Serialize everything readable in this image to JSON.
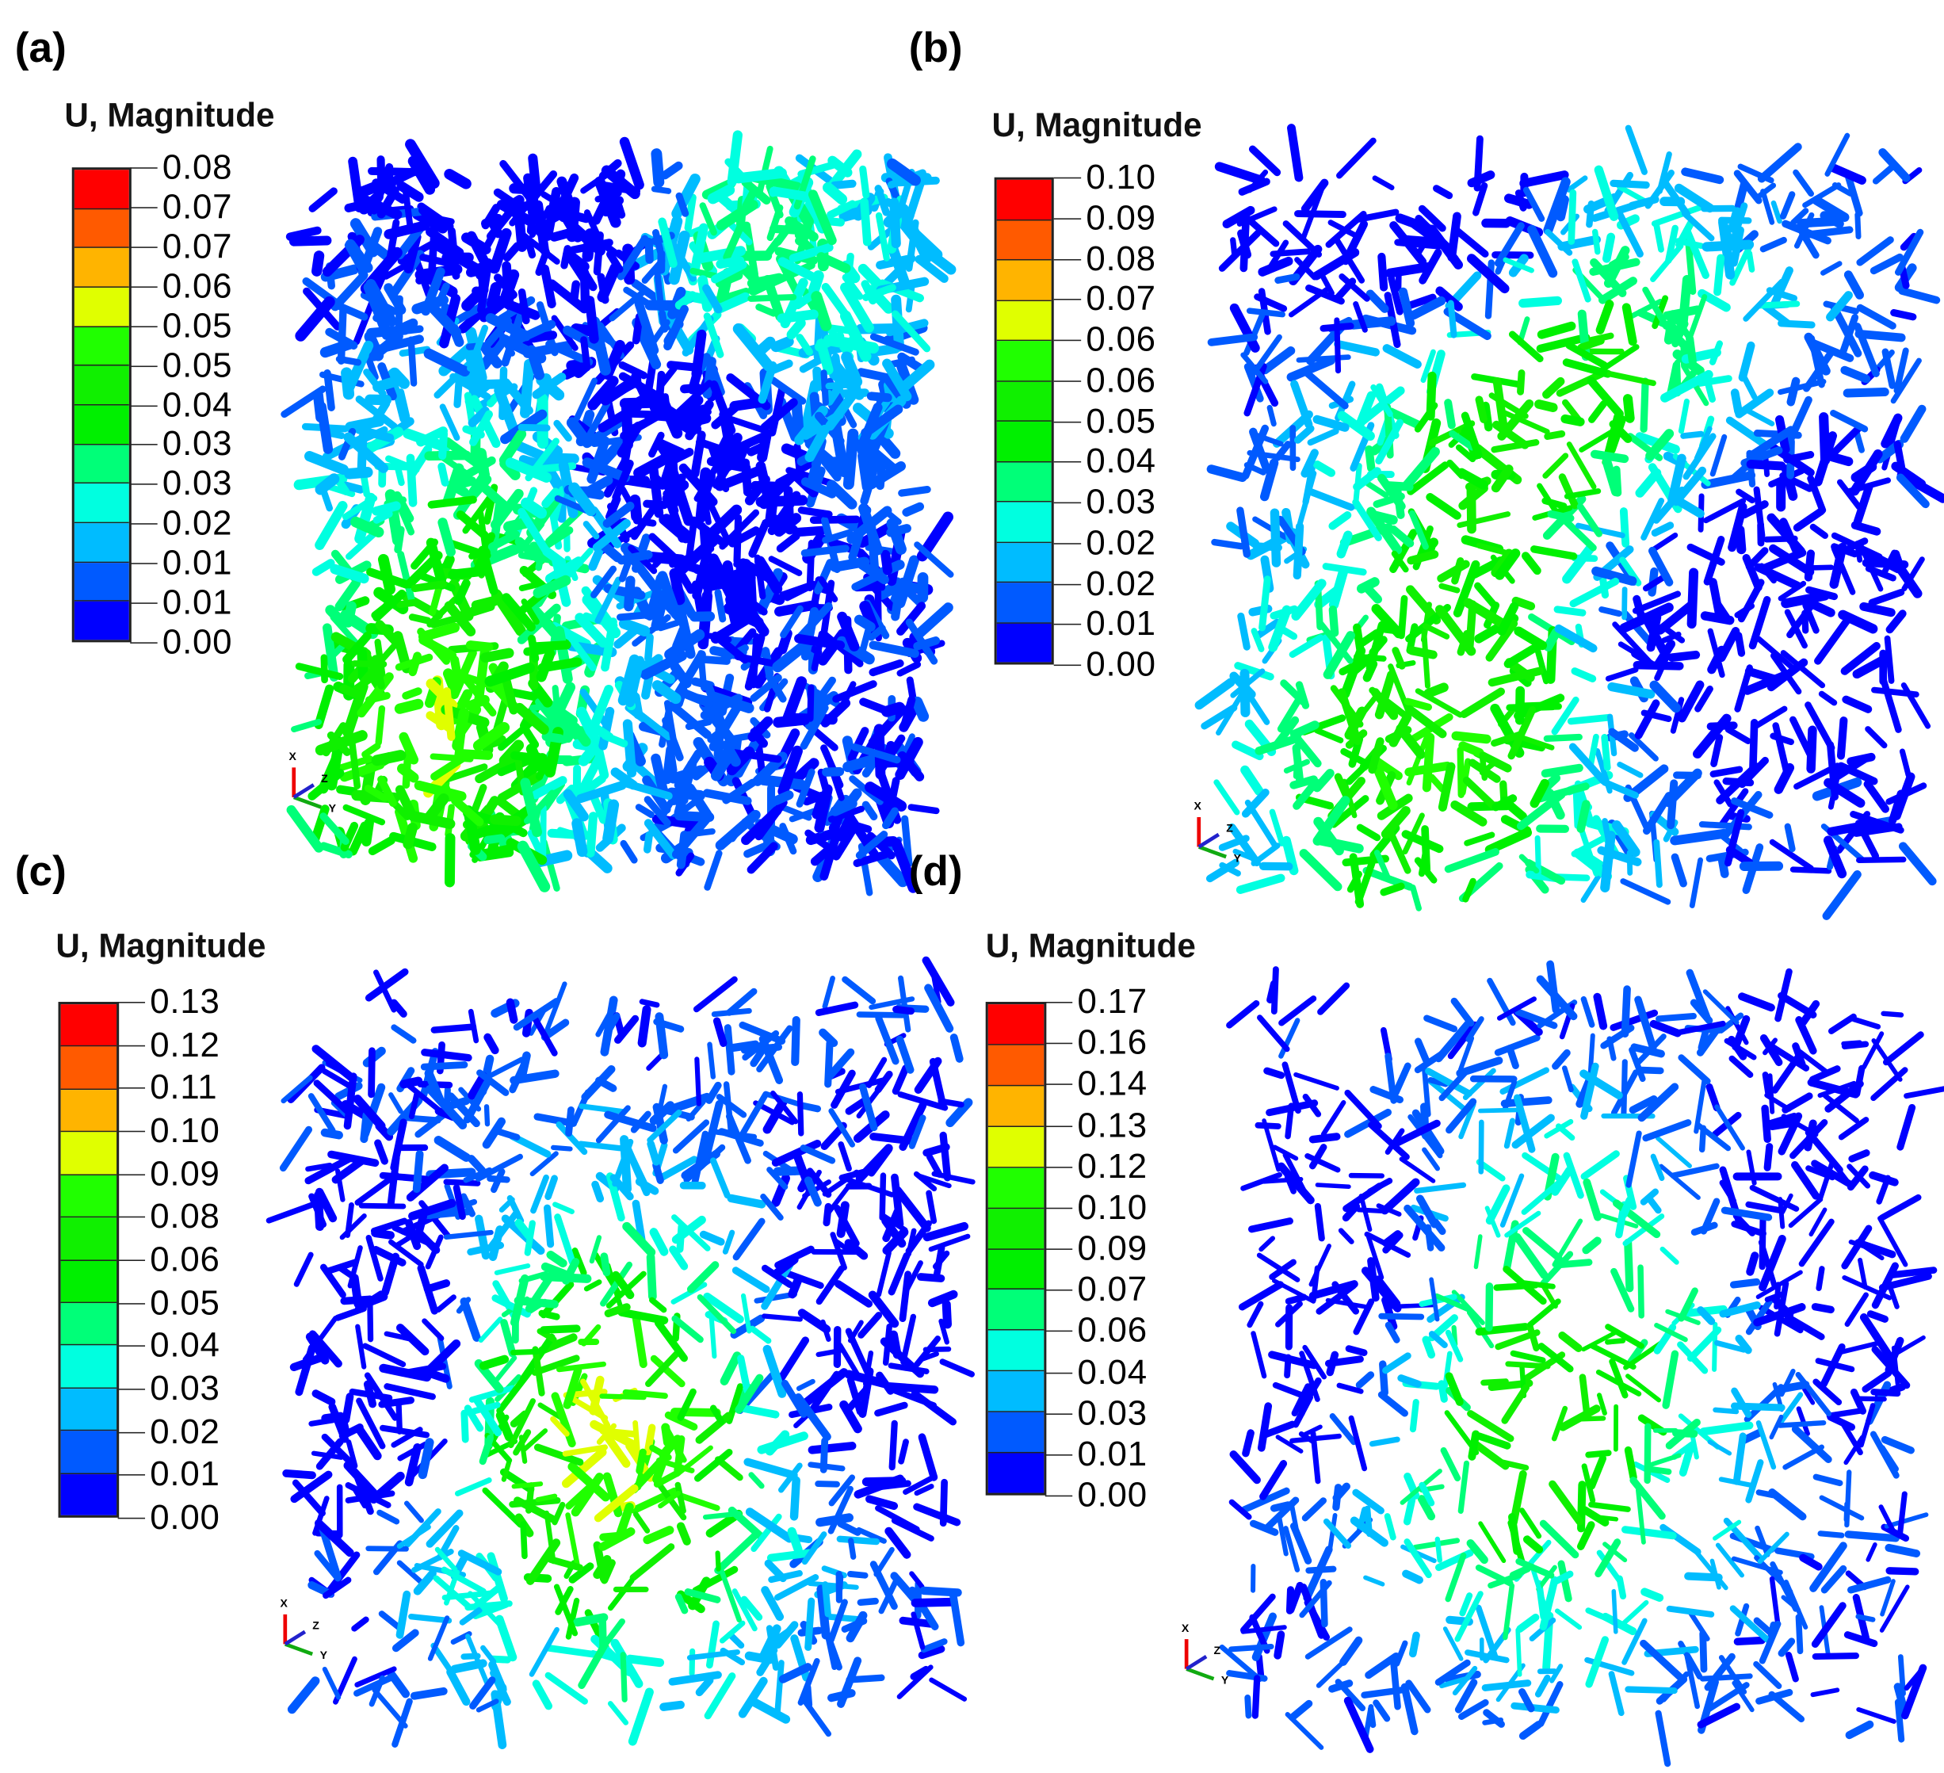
{
  "figure": {
    "legend_colors": [
      "#ff0000",
      "#ff5a00",
      "#ffb400",
      "#e0ff00",
      "#20ff00",
      "#10f000",
      "#00f000",
      "#00ff78",
      "#00ffe0",
      "#00bcff",
      "#005aff",
      "#0000ff"
    ],
    "triad_labels": {
      "x": "X",
      "y": "Y",
      "z": "Z"
    },
    "panels": [
      {
        "label": "(a)",
        "legend_title": "U, Magnitude",
        "ticks": [
          "0.08",
          "0.07",
          "0.07",
          "0.06",
          "0.05",
          "0.05",
          "0.04",
          "0.03",
          "0.03",
          "0.02",
          "0.01",
          "0.01",
          "0.00"
        ]
      },
      {
        "label": "(b)",
        "legend_title": "U, Magnitude",
        "ticks": [
          "0.10",
          "0.09",
          "0.08",
          "0.07",
          "0.06",
          "0.06",
          "0.05",
          "0.04",
          "0.03",
          "0.02",
          "0.02",
          "0.01",
          "0.00"
        ]
      },
      {
        "label": "(c)",
        "legend_title": "U, Magnitude",
        "ticks": [
          "0.13",
          "0.12",
          "0.11",
          "0.10",
          "0.09",
          "0.08",
          "0.06",
          "0.05",
          "0.04",
          "0.03",
          "0.02",
          "0.01",
          "0.00"
        ]
      },
      {
        "label": "(d)",
        "legend_title": "U, Magnitude",
        "ticks": [
          "0.17",
          "0.16",
          "0.14",
          "0.13",
          "0.12",
          "0.10",
          "0.09",
          "0.07",
          "0.06",
          "0.04",
          "0.03",
          "0.01",
          "0.00"
        ]
      }
    ]
  }
}
